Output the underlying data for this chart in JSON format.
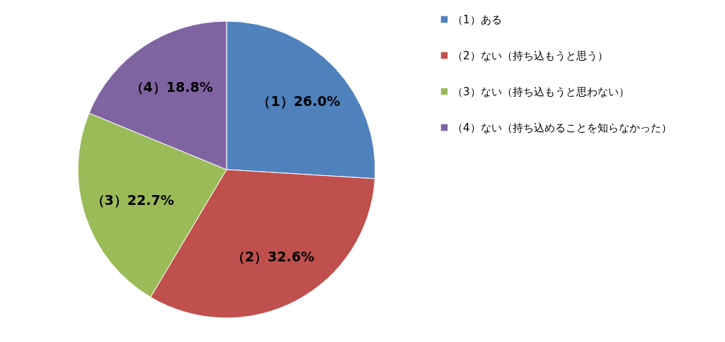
{
  "chart_data": {
    "type": "pie",
    "categories": [
      "（1）ある",
      "（2）ない（持ち込もうと思う）",
      "（3）ない（持ち込もうと思わない）",
      "（4）ない（持ち込めることを知らなかった）"
    ],
    "values": [
      26.0,
      32.6,
      22.7,
      18.8
    ],
    "colors": [
      "#4f81bd",
      "#c0504d",
      "#9bbb59",
      "#8064a2"
    ],
    "value_labels": [
      "（1）26.0%",
      "（2）32.6%",
      "（3）22.7%",
      "（4）18.8%"
    ],
    "legend": "right"
  }
}
